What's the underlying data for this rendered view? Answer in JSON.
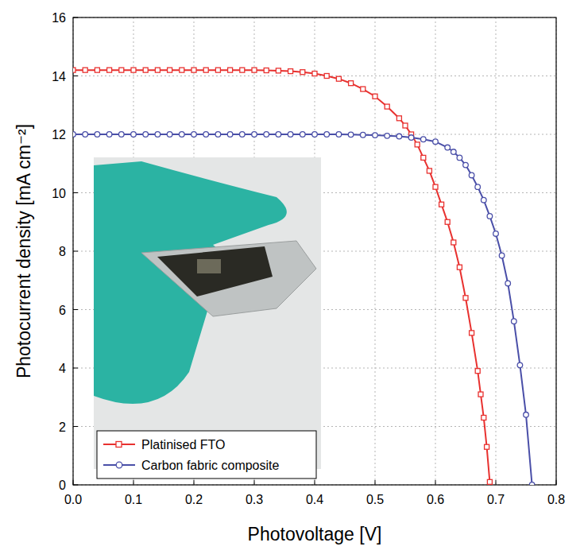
{
  "chart_data": {
    "type": "line",
    "x_label": "Photovoltage [V]",
    "y_label": "Photocurrent density [mA cm⁻²]",
    "xlim": [
      0,
      0.8
    ],
    "ylim": [
      0,
      16
    ],
    "xticks": [
      {
        "value": 0,
        "label": "0.0"
      },
      0.1,
      0.2,
      0.3,
      0.4,
      0.5,
      0.6,
      0.7,
      0.8
    ],
    "yticks": [
      0,
      2,
      4,
      6,
      8,
      10,
      12,
      14,
      16
    ],
    "grid": true,
    "legend": "lower left",
    "series": [
      {
        "name": "Platinised FTO",
        "color": "#e8312f",
        "marker": "square",
        "line_style": "solid",
        "x": [
          0,
          0.02,
          0.04,
          0.06,
          0.08,
          0.1,
          0.12,
          0.14,
          0.16,
          0.18,
          0.2,
          0.22,
          0.24,
          0.26,
          0.28,
          0.3,
          0.32,
          0.34,
          0.36,
          0.38,
          0.4,
          0.42,
          0.44,
          0.46,
          0.48,
          0.5,
          0.52,
          0.54,
          0.55,
          0.56,
          0.57,
          0.58,
          0.59,
          0.6,
          0.61,
          0.62,
          0.63,
          0.64,
          0.65,
          0.66,
          0.67,
          0.675,
          0.68,
          0.685,
          0.69
        ],
        "values": [
          14.2,
          14.2,
          14.2,
          14.2,
          14.2,
          14.2,
          14.2,
          14.2,
          14.2,
          14.2,
          14.2,
          14.2,
          14.2,
          14.2,
          14.2,
          14.2,
          14.19,
          14.18,
          14.16,
          14.13,
          14.08,
          14.0,
          13.9,
          13.75,
          13.55,
          13.3,
          12.95,
          12.55,
          12.3,
          12.0,
          11.65,
          11.2,
          10.75,
          10.2,
          9.6,
          9.0,
          8.3,
          7.45,
          6.4,
          5.2,
          3.9,
          3.1,
          2.3,
          1.3,
          0.1
        ]
      },
      {
        "name": "Carbon fabric composite",
        "color": "#4a4fa8",
        "marker": "circle",
        "line_style": "solid",
        "x": [
          0,
          0.02,
          0.04,
          0.06,
          0.08,
          0.1,
          0.12,
          0.14,
          0.16,
          0.18,
          0.2,
          0.22,
          0.24,
          0.26,
          0.28,
          0.3,
          0.32,
          0.34,
          0.36,
          0.38,
          0.4,
          0.42,
          0.44,
          0.46,
          0.48,
          0.5,
          0.52,
          0.54,
          0.56,
          0.58,
          0.6,
          0.62,
          0.63,
          0.64,
          0.65,
          0.66,
          0.67,
          0.68,
          0.69,
          0.7,
          0.71,
          0.72,
          0.73,
          0.74,
          0.75,
          0.76
        ],
        "values": [
          12.0,
          12.0,
          12.0,
          12.0,
          12.0,
          12.0,
          12.0,
          12.0,
          12.0,
          12.0,
          12.0,
          12.0,
          12.0,
          12.0,
          12.0,
          12.0,
          12.0,
          12.0,
          12.0,
          12.0,
          12.0,
          12.0,
          12.0,
          11.99,
          11.98,
          11.97,
          11.95,
          11.93,
          11.89,
          11.83,
          11.75,
          11.55,
          11.4,
          11.2,
          10.95,
          10.6,
          10.2,
          9.75,
          9.2,
          8.6,
          7.85,
          6.9,
          5.6,
          4.1,
          2.4,
          0.0
        ]
      }
    ]
  }
}
